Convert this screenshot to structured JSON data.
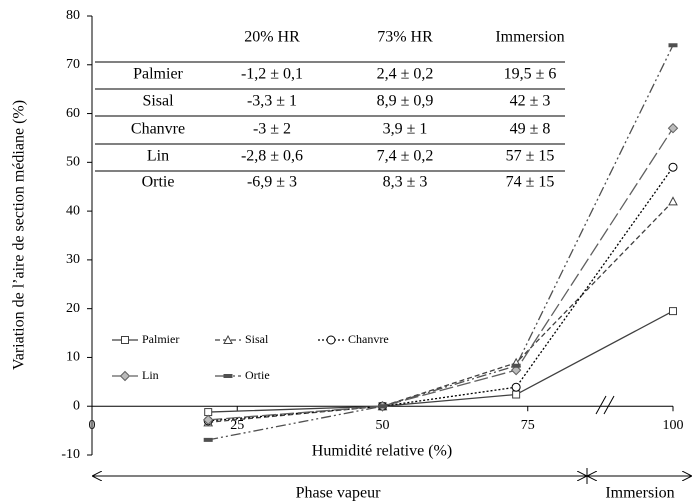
{
  "chart_data": {
    "type": "line",
    "y_label": "Variation de l’aire de section médiane (%)",
    "x_label": "Humidité relative (%)",
    "x": [
      20,
      50,
      73,
      100
    ],
    "xlim": [
      0,
      100
    ],
    "xticks": [
      0,
      25,
      50,
      75,
      100
    ],
    "ylim": [
      -10,
      80
    ],
    "yticks": [
      -10,
      0,
      10,
      20,
      30,
      40,
      50,
      60,
      70,
      80
    ],
    "series": [
      {
        "name": "Palmier",
        "color": "#404040",
        "dash": "solid",
        "marker": "square",
        "values": [
          -1.2,
          0,
          2.4,
          19.5
        ]
      },
      {
        "name": "Sisal",
        "color": "#404040",
        "dash": "dashed",
        "marker": "triangle",
        "values": [
          -3.3,
          0,
          8.9,
          42
        ]
      },
      {
        "name": "Chanvre",
        "color": "#000000",
        "dash": "dotted",
        "marker": "circle",
        "values": [
          -3,
          0,
          3.9,
          49
        ]
      },
      {
        "name": "Lin",
        "color": "#606060",
        "dash": "longdash",
        "marker": "diamond",
        "values": [
          -2.8,
          0,
          7.4,
          57
        ]
      },
      {
        "name": "Ortie",
        "color": "#505050",
        "dash": "dashdotdot",
        "marker": "dash",
        "values": [
          -6.9,
          0,
          8.3,
          74
        ]
      }
    ],
    "annotations": [
      "Phase vapeur",
      "Immersion"
    ]
  },
  "table": {
    "header": [
      "20% HR",
      "73% HR",
      "Immersion"
    ],
    "rows": [
      [
        "Palmier",
        "-1,2 ± 0,1",
        "2,4 ± 0,2",
        "19,5 ± 6"
      ],
      [
        "Sisal",
        "-3,3 ± 1",
        "8,9 ± 0,9",
        "42 ± 3"
      ],
      [
        "Chanvre",
        "-3 ± 2",
        "3,9 ± 1",
        "49 ± 8"
      ],
      [
        "Lin",
        "-2,8 ± 0,6",
        "7,4 ± 0,2",
        "57 ± 15"
      ],
      [
        "Ortie",
        "-6,9 ± 3",
        "8,3 ± 3",
        "74 ± 15"
      ]
    ]
  }
}
